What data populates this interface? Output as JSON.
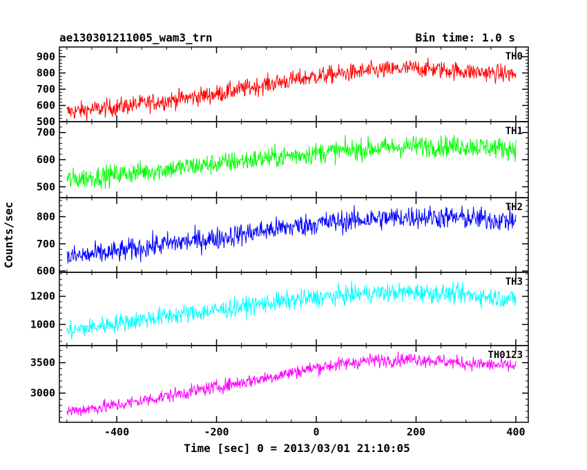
{
  "chart_data": {
    "type": "line",
    "title_left": "ae130301211005_wam3_trn",
    "title_right": "Bin time: 1.0 s",
    "xlabel": "Time [sec] 0 = 2013/03/01 21:10:05",
    "ylabel": "Counts/sec",
    "xlim": [
      -515,
      425
    ],
    "x_ticks": [
      -400,
      -200,
      0,
      200,
      400
    ],
    "x_range": [
      -500,
      400
    ],
    "bin_time": 1.0,
    "panels": [
      {
        "name": "TH0",
        "color": "#ff0000",
        "ylim": [
          500,
          960
        ],
        "y_ticks": [
          500,
          600,
          700,
          800,
          900
        ],
        "trend_x": [
          -500,
          -400,
          -300,
          -200,
          -100,
          0,
          100,
          200,
          300,
          400
        ],
        "trend_y": [
          560,
          590,
          630,
          670,
          730,
          780,
          810,
          830,
          810,
          790
        ],
        "noise": 40
      },
      {
        "name": "TH1",
        "color": "#00ff00",
        "ylim": [
          460,
          740
        ],
        "y_ticks": [
          500,
          600,
          700
        ],
        "trend_x": [
          -500,
          -400,
          -300,
          -200,
          -100,
          0,
          100,
          200,
          300,
          400
        ],
        "trend_y": [
          525,
          545,
          565,
          585,
          605,
          625,
          640,
          650,
          650,
          640
        ],
        "noise": 28
      },
      {
        "name": "TH2",
        "color": "#0000ff",
        "ylim": [
          595,
          870
        ],
        "y_ticks": [
          600,
          700,
          800
        ],
        "trend_x": [
          -500,
          -400,
          -300,
          -200,
          -100,
          0,
          100,
          200,
          300,
          400
        ],
        "trend_y": [
          650,
          670,
          700,
          720,
          750,
          775,
          790,
          800,
          795,
          785
        ],
        "noise": 30
      },
      {
        "name": "TH3",
        "color": "#00ffff",
        "ylim": [
          850,
          1370
        ],
        "y_ticks": [
          1000,
          1200
        ],
        "trend_x": [
          -500,
          -400,
          -300,
          -200,
          -100,
          0,
          100,
          200,
          300,
          400
        ],
        "trend_y": [
          950,
          1010,
          1060,
          1100,
          1150,
          1190,
          1220,
          1230,
          1210,
          1180
        ],
        "noise": 48
      },
      {
        "name": "TH0123",
        "color": "#ff00ff",
        "ylim": [
          2520,
          3780
        ],
        "y_ticks": [
          3000,
          3500
        ],
        "trend_x": [
          -500,
          -400,
          -300,
          -200,
          -100,
          0,
          100,
          200,
          300,
          400
        ],
        "trend_y": [
          2700,
          2800,
          2950,
          3100,
          3250,
          3420,
          3530,
          3560,
          3490,
          3440
        ],
        "noise": 80
      }
    ]
  }
}
